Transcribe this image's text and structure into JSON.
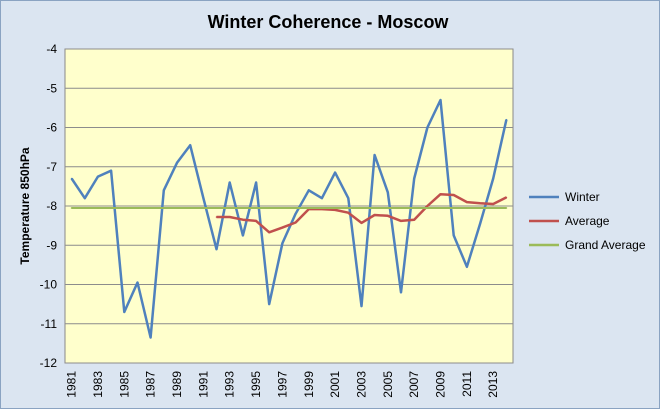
{
  "chart_data": {
    "type": "line",
    "title": "Winter Coherence - Moscow",
    "xlabel": "",
    "ylabel": "Temperature 850hPa",
    "ylim": [
      -12,
      -4
    ],
    "yticks": [
      -4,
      -5,
      -6,
      -7,
      -8,
      -9,
      -10,
      -11,
      -12
    ],
    "x": [
      1981,
      1982,
      1983,
      1984,
      1985,
      1986,
      1987,
      1988,
      1989,
      1990,
      1991,
      1992,
      1993,
      1994,
      1995,
      1996,
      1997,
      1998,
      1999,
      2000,
      2001,
      2002,
      2003,
      2004,
      2005,
      2006,
      2007,
      2008,
      2009,
      2010,
      2011,
      2012,
      2013,
      2014
    ],
    "xtick_labels": [
      "1981",
      "1983",
      "1985",
      "1987",
      "1989",
      "1991",
      "1993",
      "1995",
      "1997",
      "1999",
      "2001",
      "2003",
      "2005",
      "2007",
      "2009",
      "2011",
      "2013"
    ],
    "grid": "horizontal",
    "legend_position": "right",
    "plot_background": "#ffffcc",
    "series": [
      {
        "name": "Winter",
        "color": "#4f81bd",
        "values": [
          -7.3,
          -7.8,
          -7.25,
          -7.1,
          -10.7,
          -9.95,
          -11.35,
          -7.6,
          -6.9,
          -6.45,
          -7.8,
          -9.1,
          -7.4,
          -8.75,
          -7.4,
          -10.5,
          -8.95,
          -8.2,
          -7.6,
          -7.8,
          -7.15,
          -7.8,
          -10.55,
          -6.7,
          -7.65,
          -10.2,
          -7.3,
          -6.0,
          -5.3,
          -8.75,
          -9.55,
          -8.45,
          -7.3,
          -5.8
        ]
      },
      {
        "name": "Average",
        "color": "#c0504d",
        "values": [
          null,
          null,
          null,
          null,
          null,
          null,
          null,
          null,
          null,
          null,
          null,
          -8.28,
          -8.28,
          -8.35,
          -8.38,
          -8.67,
          -8.55,
          -8.42,
          -8.08,
          -8.08,
          -8.1,
          -8.17,
          -8.43,
          -8.23,
          -8.25,
          -8.38,
          -8.35,
          -8.0,
          -7.7,
          -7.72,
          -7.9,
          -7.93,
          -7.95,
          -7.78
        ]
      },
      {
        "name": "Grand Average",
        "color": "#9bbb59",
        "values": [
          -8.05,
          -8.05,
          -8.05,
          -8.05,
          -8.05,
          -8.05,
          -8.05,
          -8.05,
          -8.05,
          -8.05,
          -8.05,
          -8.05,
          -8.05,
          -8.05,
          -8.05,
          -8.05,
          -8.05,
          -8.05,
          -8.05,
          -8.05,
          -8.05,
          -8.05,
          -8.05,
          -8.05,
          -8.05,
          -8.05,
          -8.05,
          -8.05,
          -8.05,
          -8.05,
          -8.05,
          -8.05,
          -8.05,
          -8.05
        ]
      }
    ]
  }
}
